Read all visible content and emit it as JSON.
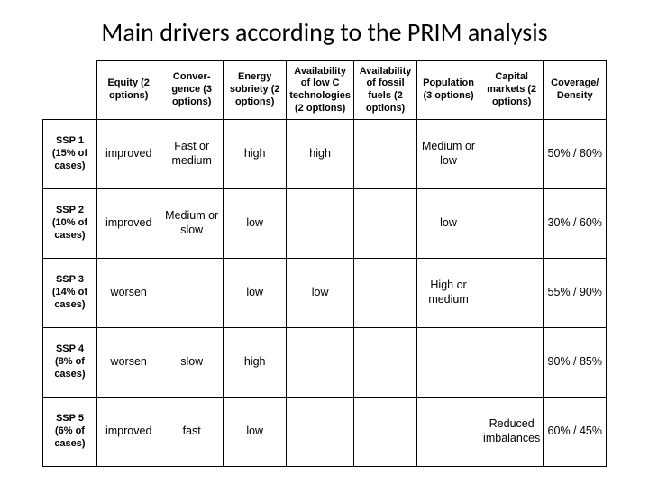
{
  "title": "Main drivers according to the PRIM analysis",
  "colors": {
    "background": "#ffffff",
    "border": "#000000",
    "text": "#000000"
  },
  "fontsizes": {
    "title": 28,
    "header": 11,
    "cell": 12.5
  },
  "columns": [
    "Equity (2 options)",
    "Conver­gence (3 options)",
    "Energy sobriety (2 options)",
    "Availability of low C technologies (2 options)",
    "Availability of fossil fuels (2 options)",
    "Population (3 options)",
    "Capital markets (2 options)",
    "Coverage/ Density"
  ],
  "rows": [
    {
      "label_main": "SSP 1",
      "label_sub": "(15% of cases)",
      "cells": [
        "improved",
        "Fast or medium",
        "high",
        "high",
        "",
        "Medium or low",
        "",
        "50% / 80%"
      ]
    },
    {
      "label_main": "SSP 2",
      "label_sub": "(10% of cases)",
      "cells": [
        "improved",
        "Medium or slow",
        "low",
        "",
        "",
        "low",
        "",
        "30% / 60%"
      ]
    },
    {
      "label_main": "SSP 3",
      "label_sub": "(14% of cases)",
      "cells": [
        "worsen",
        "",
        "low",
        "low",
        "",
        "High or medium",
        "",
        "55% / 90%"
      ]
    },
    {
      "label_main": "SSP 4",
      "label_sub": "(8% of cases)",
      "cells": [
        "worsen",
        "slow",
        "high",
        "",
        "",
        "",
        "",
        "90% / 85%"
      ]
    },
    {
      "label_main": "SSP 5",
      "label_sub": "(6% of cases)",
      "cells": [
        "improved",
        "fast",
        "low",
        "",
        "",
        "",
        "Reduced imbalances",
        "60% / 45%"
      ]
    }
  ]
}
